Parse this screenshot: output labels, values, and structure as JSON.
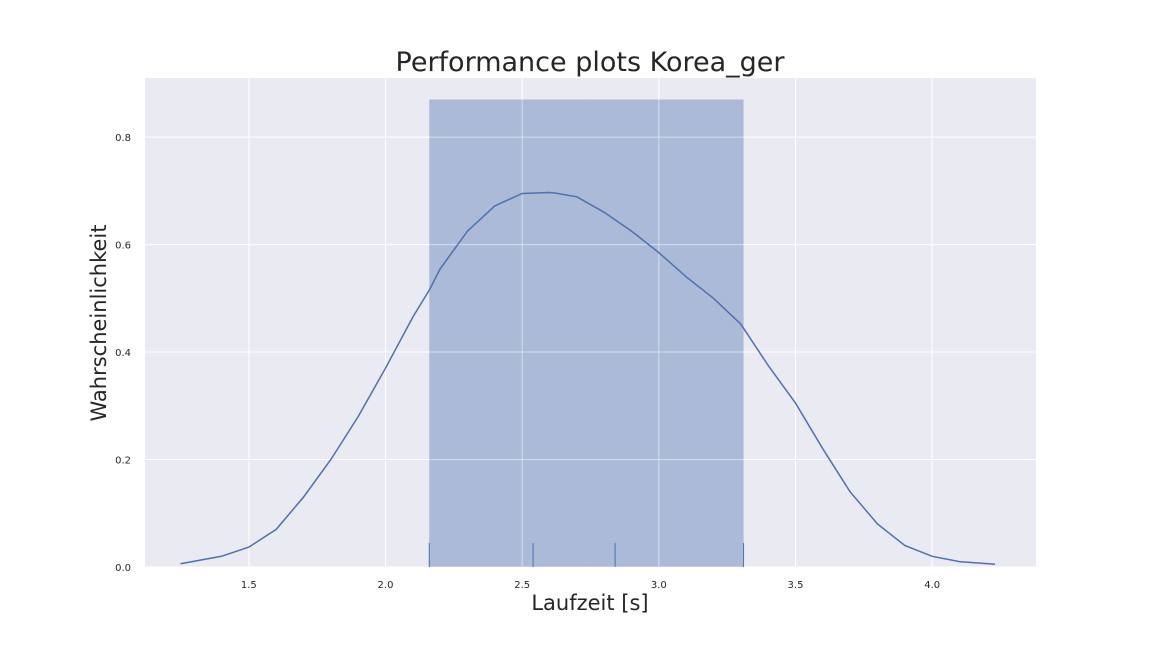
{
  "chart_data": {
    "type": "histogram",
    "title": "Performance plots Korea_ger",
    "xlabel": "Laufzeit [s]",
    "ylabel": "Wahrscheinlichkeit",
    "xlim": [
      1.12,
      4.38
    ],
    "ylim": [
      0.0,
      0.91
    ],
    "xticks": [
      "1.5",
      "2.0",
      "2.5",
      "3.0",
      "3.5",
      "4.0"
    ],
    "yticks": [
      "0.0",
      "0.2",
      "0.4",
      "0.6",
      "0.8"
    ],
    "grid": true,
    "background": "#eaeaf2",
    "color": "#4c72b0",
    "histogram": {
      "bins": [
        {
          "x0": 2.16,
          "x1": 2.735,
          "density": 0.87
        },
        {
          "x0": 2.735,
          "x1": 3.31,
          "density": 0.87
        }
      ]
    },
    "kde": {
      "x": [
        1.25,
        1.4,
        1.5,
        1.6,
        1.7,
        1.8,
        1.9,
        2.0,
        2.1,
        2.16,
        2.2,
        2.3,
        2.4,
        2.5,
        2.6,
        2.62,
        2.7,
        2.8,
        2.9,
        3.0,
        3.1,
        3.2,
        3.3,
        3.4,
        3.5,
        3.6,
        3.7,
        3.8,
        3.9,
        4.0,
        4.1,
        4.23
      ],
      "y": [
        0.006,
        0.02,
        0.037,
        0.07,
        0.13,
        0.2,
        0.28,
        0.37,
        0.465,
        0.515,
        0.555,
        0.625,
        0.672,
        0.695,
        0.697,
        0.696,
        0.689,
        0.66,
        0.625,
        0.585,
        0.54,
        0.5,
        0.452,
        0.375,
        0.305,
        0.22,
        0.14,
        0.08,
        0.04,
        0.02,
        0.01,
        0.005
      ]
    },
    "rug": [
      2.16,
      2.54,
      2.84,
      3.31
    ]
  }
}
